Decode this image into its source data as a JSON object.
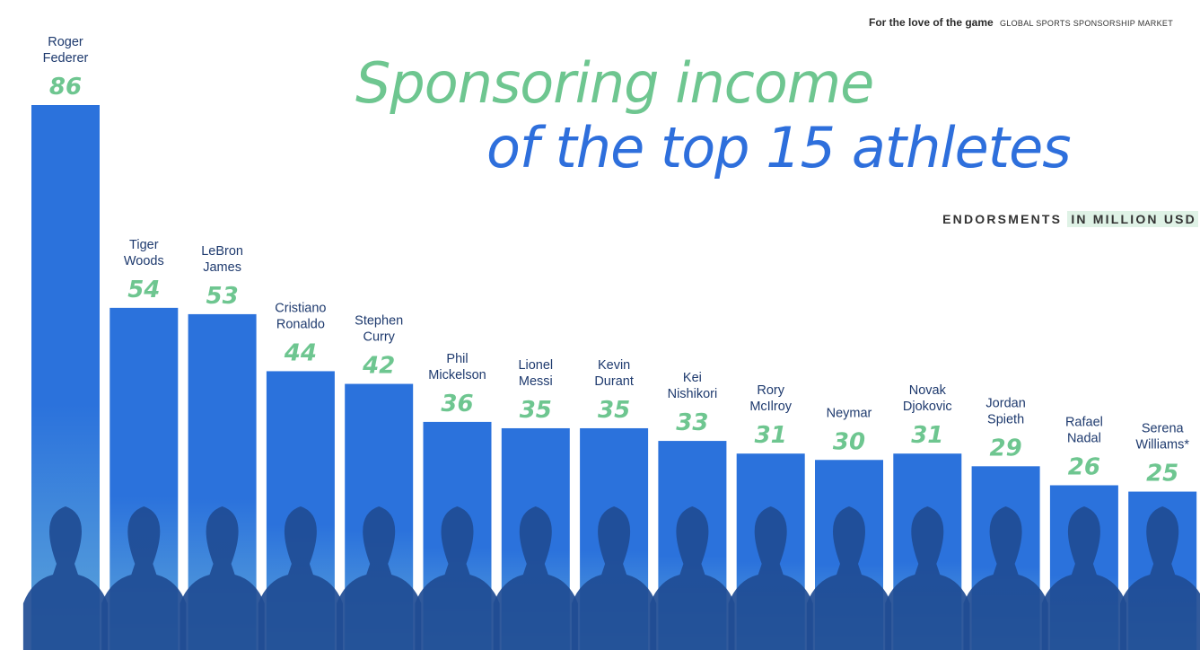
{
  "header": {
    "brand": "For the love of the game",
    "subtitle": "GLOBAL SPORTS SPONSORSHIP MARKET"
  },
  "title": {
    "line1": "Sponsoring income",
    "line2": "of the top 15 athletes"
  },
  "unit_label": {
    "part1": "ENDORSMENTS",
    "part2": "IN MILLION USD"
  },
  "colors": {
    "bar_top": "#2b72dc",
    "bar_bottom": "#5ea6da",
    "silhouette": "#1f4c94",
    "value_green": "#6ec690",
    "name_navy": "#1e3a6e"
  },
  "chart_data": {
    "type": "bar",
    "title": "Sponsoring income of the top 15 athletes",
    "ylabel": "ENDORSMENTS IN MILLION USD",
    "categories": [
      [
        "Roger",
        "Federer"
      ],
      [
        "Tiger",
        "Woods"
      ],
      [
        "LeBron",
        "James"
      ],
      [
        "Cristiano",
        "Ronaldo"
      ],
      [
        "Stephen",
        "Curry"
      ],
      [
        "Phil",
        "Mickelson"
      ],
      [
        "Lionel",
        "Messi"
      ],
      [
        "Kevin",
        "Durant"
      ],
      [
        "Kei",
        "Nishikori"
      ],
      [
        "Rory",
        "McIlroy"
      ],
      [
        "Neymar"
      ],
      [
        "Novak",
        "Djokovic"
      ],
      [
        "Jordan",
        "Spieth"
      ],
      [
        "Rafael",
        "Nadal"
      ],
      [
        "Serena",
        "Williams*"
      ]
    ],
    "values": [
      86,
      54,
      53,
      44,
      42,
      36,
      35,
      35,
      33,
      31,
      30,
      31,
      29,
      26,
      25
    ]
  }
}
